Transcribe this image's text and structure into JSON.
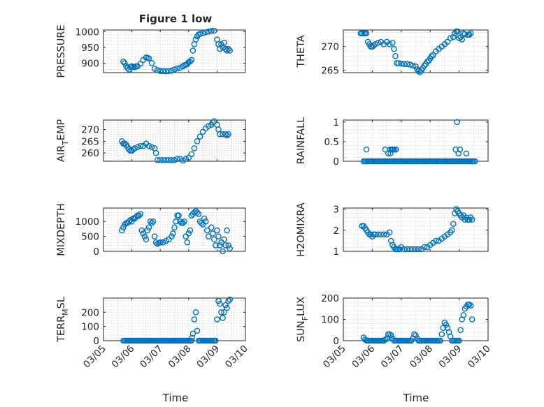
{
  "figure_title": "Figure 1 low",
  "xlabel": "Time",
  "colors": {
    "marker": "#0072bd",
    "axis": "#262626",
    "grid": "#cfcfcf"
  },
  "chart_data": [
    {
      "name": "PRESSURE",
      "type": "scatter",
      "ylabel_main": "PRESSURE",
      "ylabel_sub": "",
      "ylabel_tail": "",
      "xlim": [
        5,
        10
      ],
      "ylim": [
        870,
        1005
      ],
      "yticks": [
        900,
        950,
        1000
      ],
      "x": [
        5.7,
        5.75,
        5.8,
        5.85,
        5.9,
        5.95,
        6.0,
        6.05,
        6.1,
        6.15,
        6.2,
        6.3,
        6.4,
        6.5,
        6.55,
        6.6,
        6.7,
        6.8,
        6.9,
        7.0,
        7.1,
        7.2,
        7.3,
        7.4,
        7.5,
        7.6,
        7.7,
        7.8,
        7.85,
        7.9,
        7.95,
        8.0,
        8.05,
        8.1,
        8.15,
        8.2,
        8.25,
        8.3,
        8.35,
        8.4,
        8.5,
        8.6,
        8.7,
        8.8,
        8.9,
        9.0,
        9.05,
        9.1,
        9.15,
        9.2,
        9.25,
        9.3,
        9.35,
        9.4,
        9.45
      ],
      "y": [
        905,
        900,
        890,
        885,
        880,
        888,
        890,
        888,
        887,
        890,
        890,
        898,
        910,
        918,
        917,
        915,
        900,
        882,
        878,
        875,
        875,
        874,
        875,
        876,
        880,
        883,
        885,
        890,
        893,
        895,
        897,
        903,
        905,
        910,
        940,
        960,
        975,
        985,
        990,
        993,
        995,
        998,
        1000,
        1002,
        1003,
        975,
        960,
        945,
        960,
        950,
        965,
        945,
        940,
        945,
        940
      ]
    },
    {
      "name": "THETA",
      "type": "scatter",
      "ylabel_main": "THETA",
      "ylabel_sub": "",
      "ylabel_tail": "",
      "xlim": [
        5,
        10
      ],
      "ylim": [
        264.5,
        273.5
      ],
      "yticks": [
        265,
        270
      ],
      "x": [
        5.6,
        5.65,
        5.7,
        5.75,
        5.8,
        5.85,
        5.9,
        5.95,
        6.0,
        6.05,
        6.1,
        6.2,
        6.3,
        6.4,
        6.5,
        6.6,
        6.7,
        6.75,
        6.8,
        6.85,
        6.9,
        7.0,
        7.1,
        7.2,
        7.3,
        7.4,
        7.5,
        7.55,
        7.6,
        7.65,
        7.7,
        7.75,
        7.8,
        7.85,
        7.9,
        7.95,
        8.0,
        8.05,
        8.1,
        8.2,
        8.3,
        8.4,
        8.5,
        8.6,
        8.7,
        8.8,
        8.85,
        8.9,
        8.95,
        9.0,
        9.05,
        9.1,
        9.15,
        9.2,
        9.3,
        9.35,
        9.4
      ],
      "y": [
        272.8,
        272.8,
        272.8,
        272.8,
        272.8,
        271,
        270.5,
        270,
        270,
        270.2,
        270.5,
        270.8,
        271,
        270.5,
        271,
        270.5,
        270.8,
        269.5,
        268,
        266.5,
        266.5,
        266.4,
        266.3,
        266.3,
        266.2,
        266,
        265.8,
        265.2,
        264.8,
        264.6,
        265,
        265.5,
        266,
        266.3,
        266.8,
        267,
        267.5,
        268,
        268.2,
        269,
        269.5,
        270,
        270.5,
        271,
        271.8,
        272,
        272.8,
        273.2,
        273.2,
        271.8,
        272,
        271.5,
        272.8,
        272.6,
        272.5,
        272.5,
        272.8
      ]
    },
    {
      "name": "AIR_TEMP",
      "type": "scatter",
      "ylabel_main": "AIR",
      "ylabel_sub": "T",
      "ylabel_tail": "EMP",
      "xlim": [
        5,
        10
      ],
      "ylim": [
        256.5,
        274
      ],
      "yticks": [
        260,
        265,
        270
      ],
      "x": [
        5.65,
        5.7,
        5.75,
        5.8,
        5.85,
        5.9,
        5.95,
        6.0,
        6.05,
        6.1,
        6.2,
        6.3,
        6.4,
        6.5,
        6.6,
        6.7,
        6.8,
        6.85,
        6.9,
        7.0,
        7.1,
        7.2,
        7.3,
        7.4,
        7.5,
        7.6,
        7.7,
        7.8,
        7.9,
        8.0,
        8.1,
        8.2,
        8.3,
        8.4,
        8.5,
        8.6,
        8.7,
        8.8,
        8.85,
        8.9,
        9.0,
        9.05,
        9.1,
        9.2,
        9.3,
        9.35,
        9.4
      ],
      "y": [
        265,
        264,
        264,
        263.5,
        262.5,
        261.5,
        261,
        261,
        261.5,
        262,
        262.5,
        263,
        263,
        264,
        263,
        262.5,
        262,
        260,
        257,
        257,
        257,
        257,
        257,
        257,
        257,
        257.5,
        257.5,
        256.8,
        257.5,
        258,
        259.5,
        262,
        265,
        267,
        269,
        270.5,
        271.5,
        272,
        273,
        273.5,
        272,
        270,
        268,
        268,
        268,
        267.5,
        268
      ]
    },
    {
      "name": "RAINFALL",
      "type": "scatter",
      "ylabel_main": "RAINFALL",
      "ylabel_sub": "",
      "ylabel_tail": "",
      "xlim": [
        5,
        10
      ],
      "ylim": [
        0,
        1.05
      ],
      "yticks": [
        0,
        0.5,
        1
      ],
      "x": [
        5.7,
        5.75,
        5.8,
        5.85,
        5.9,
        5.95,
        6.0,
        6.05,
        6.1,
        6.15,
        6.2,
        6.25,
        6.3,
        6.35,
        6.4,
        6.45,
        6.5,
        6.55,
        6.6,
        6.65,
        6.7,
        6.75,
        6.8,
        6.85,
        6.9,
        6.95,
        7.0,
        7.05,
        7.1,
        7.15,
        7.2,
        7.25,
        7.3,
        7.35,
        7.4,
        7.45,
        7.5,
        7.55,
        7.6,
        7.65,
        7.7,
        7.75,
        7.8,
        7.85,
        7.9,
        7.95,
        8.0,
        8.05,
        8.1,
        8.15,
        8.2,
        8.25,
        8.3,
        8.35,
        8.4,
        8.45,
        8.5,
        8.55,
        8.6,
        8.65,
        8.7,
        8.75,
        8.8,
        8.85,
        8.9,
        8.95,
        9.0,
        9.05,
        9.1,
        9.15,
        9.2,
        9.25,
        9.3,
        9.35,
        9.4,
        9.45,
        9.5,
        9.55,
        5.8,
        6.45,
        6.55,
        6.62,
        6.67,
        6.72,
        6.77,
        6.63,
        6.7,
        6.82,
        8.88,
        8.93,
        8.98,
        9.03,
        9.25
      ],
      "y": [
        0,
        0,
        0,
        0,
        0,
        0,
        0,
        0,
        0,
        0,
        0,
        0,
        0,
        0,
        0,
        0,
        0,
        0,
        0,
        0,
        0,
        0,
        0,
        0,
        0,
        0,
        0,
        0,
        0,
        0,
        0,
        0,
        0,
        0,
        0,
        0,
        0,
        0,
        0,
        0,
        0,
        0,
        0,
        0,
        0,
        0,
        0,
        0,
        0,
        0,
        0,
        0,
        0,
        0,
        0,
        0,
        0,
        0,
        0,
        0,
        0,
        0,
        0,
        0,
        0,
        0,
        0,
        0,
        0,
        0,
        0,
        0,
        0,
        0,
        0,
        0,
        0,
        0,
        0.3,
        0.3,
        0.2,
        0.3,
        0.3,
        0.3,
        0.3,
        0.2,
        0.3,
        0.3,
        0.3,
        1.0,
        0.2,
        0.3,
        0.2
      ]
    },
    {
      "name": "MIXDEPTH",
      "type": "scatter",
      "ylabel_main": "MIXDEPTH",
      "ylabel_sub": "",
      "ylabel_tail": "",
      "xlim": [
        5,
        10
      ],
      "ylim": [
        0,
        1450
      ],
      "yticks": [
        0,
        500,
        1000
      ],
      "x": [
        5.65,
        5.7,
        5.75,
        5.8,
        5.85,
        5.9,
        5.95,
        6.0,
        6.05,
        6.1,
        6.15,
        6.2,
        6.25,
        6.3,
        6.35,
        6.4,
        6.45,
        6.5,
        6.55,
        6.6,
        6.65,
        6.7,
        6.75,
        6.8,
        6.85,
        6.9,
        6.95,
        7.0,
        7.1,
        7.2,
        7.3,
        7.4,
        7.45,
        7.5,
        7.55,
        7.6,
        7.65,
        7.7,
        7.75,
        7.8,
        7.85,
        7.9,
        7.95,
        8.0,
        8.05,
        8.1,
        8.15,
        8.2,
        8.25,
        8.3,
        8.35,
        8.4,
        8.45,
        8.5,
        8.55,
        8.6,
        8.65,
        8.7,
        8.8,
        8.85,
        8.9,
        8.95,
        9.0,
        9.05,
        9.1,
        9.15,
        9.2,
        9.25,
        9.3,
        9.35,
        9.4,
        9.45
      ],
      "y": [
        700,
        800,
        900,
        950,
        950,
        1000,
        1050,
        1000,
        1100,
        1100,
        1150,
        1200,
        1200,
        1250,
        700,
        600,
        500,
        400,
        700,
        800,
        1000,
        950,
        1000,
        500,
        300,
        250,
        280,
        300,
        300,
        350,
        400,
        500,
        600,
        800,
        1000,
        1200,
        1200,
        1000,
        950,
        950,
        1000,
        500,
        300,
        600,
        700,
        1200,
        1250,
        1300,
        1350,
        1300,
        1250,
        1000,
        950,
        900,
        1100,
        1000,
        700,
        500,
        800,
        600,
        400,
        200,
        700,
        500,
        200,
        300,
        0,
        400,
        200,
        700,
        200,
        100
      ]
    },
    {
      "name": "H2OMIXRA",
      "type": "scatter",
      "ylabel_main": "H2OMIXRA",
      "ylabel_sub": "",
      "ylabel_tail": "",
      "xlim": [
        5,
        10
      ],
      "ylim": [
        1,
        3.05
      ],
      "yticks": [
        1,
        2,
        3
      ],
      "x": [
        5.65,
        5.7,
        5.75,
        5.8,
        5.85,
        5.9,
        5.95,
        6.0,
        6.05,
        6.1,
        6.2,
        6.3,
        6.4,
        6.5,
        6.6,
        6.65,
        6.7,
        6.75,
        6.8,
        6.85,
        6.9,
        6.95,
        7.0,
        7.1,
        7.2,
        7.3,
        7.4,
        7.5,
        7.6,
        7.7,
        7.8,
        7.9,
        8.0,
        8.1,
        8.2,
        8.3,
        8.4,
        8.5,
        8.6,
        8.7,
        8.75,
        8.8,
        8.85,
        8.9,
        8.95,
        9.0,
        9.05,
        9.1,
        9.15,
        9.2,
        9.25,
        9.3,
        9.35,
        9.4,
        9.45
      ],
      "y": [
        2.2,
        2.2,
        2.1,
        2,
        1.9,
        1.8,
        1.8,
        1.7,
        1.8,
        1.8,
        1.8,
        1.8,
        1.8,
        1.8,
        1.9,
        1.5,
        1.3,
        1.2,
        1.1,
        1.1,
        1.1,
        1.1,
        1.2,
        1.1,
        1.1,
        1.1,
        1.1,
        1.1,
        1.1,
        1.1,
        1.2,
        1.2,
        1.3,
        1.4,
        1.5,
        1.5,
        1.6,
        1.7,
        1.8,
        1.9,
        2,
        2.3,
        2.8,
        3,
        2.9,
        2.8,
        2.7,
        2.6,
        2.7,
        2.5,
        2.6,
        2.5,
        2.5,
        2.6,
        2.5
      ]
    },
    {
      "name": "TERR_MSL",
      "type": "scatter",
      "ylabel_main": "TERR",
      "ylabel_sub": "M",
      "ylabel_tail": "SL",
      "xlim": [
        5,
        10
      ],
      "ylim": [
        0,
        300
      ],
      "yticks": [
        0,
        100,
        200
      ],
      "x": [
        5.7,
        5.75,
        5.8,
        5.85,
        5.9,
        5.95,
        6.0,
        6.05,
        6.1,
        6.15,
        6.2,
        6.25,
        6.3,
        6.35,
        6.4,
        6.45,
        6.5,
        6.55,
        6.6,
        6.65,
        6.7,
        6.75,
        6.8,
        6.85,
        6.9,
        6.95,
        7.0,
        7.05,
        7.1,
        7.15,
        7.2,
        7.25,
        7.3,
        7.35,
        7.4,
        7.45,
        7.5,
        7.55,
        7.6,
        7.65,
        7.7,
        7.75,
        7.8,
        7.85,
        7.9,
        7.95,
        8.0,
        8.05,
        8.1,
        8.12,
        8.15,
        8.2,
        8.25,
        8.3,
        8.35,
        8.4,
        8.45,
        8.5,
        8.55,
        8.6,
        8.65,
        8.7,
        8.75,
        8.8,
        8.85,
        8.9,
        8.95,
        9.0,
        9.05,
        9.1,
        9.15,
        9.2,
        9.25,
        9.3,
        9.35,
        9.4,
        9.45
      ],
      "y": [
        0,
        0,
        0,
        0,
        0,
        0,
        0,
        0,
        0,
        0,
        0,
        0,
        0,
        0,
        0,
        0,
        0,
        0,
        0,
        0,
        0,
        0,
        0,
        0,
        0,
        0,
        0,
        0,
        0,
        0,
        0,
        0,
        0,
        0,
        0,
        0,
        0,
        0,
        0,
        0,
        0,
        0,
        0,
        0,
        0,
        0,
        0,
        0,
        0,
        20,
        50,
        150,
        200,
        70,
        0,
        0,
        0,
        0,
        0,
        0,
        0,
        0,
        0,
        0,
        0,
        0,
        0,
        150,
        280,
        260,
        200,
        160,
        200,
        250,
        230,
        280,
        290
      ]
    },
    {
      "name": "SUN_FLUX",
      "type": "scatter",
      "ylabel_main": "SUN",
      "ylabel_sub": "F",
      "ylabel_tail": "LUX",
      "xlim": [
        5,
        10
      ],
      "ylim": [
        0,
        200
      ],
      "yticks": [
        0,
        100,
        200
      ],
      "x": [
        5.7,
        5.75,
        5.8,
        5.85,
        5.9,
        5.95,
        6.0,
        6.05,
        6.1,
        6.15,
        6.2,
        6.25,
        6.3,
        6.35,
        6.4,
        6.45,
        6.5,
        6.55,
        6.6,
        6.65,
        6.7,
        6.75,
        6.8,
        6.85,
        6.9,
        6.95,
        7.0,
        7.05,
        7.1,
        7.15,
        7.2,
        7.25,
        7.3,
        7.35,
        7.4,
        7.45,
        7.5,
        7.55,
        7.6,
        7.65,
        7.7,
        7.75,
        7.8,
        7.85,
        7.9,
        7.95,
        8.0,
        8.05,
        8.1,
        8.15,
        8.2,
        8.25,
        8.3,
        8.35,
        8.4,
        8.45,
        8.5,
        8.55,
        8.6,
        8.65,
        8.7,
        8.75,
        8.8,
        8.85,
        8.9,
        8.95,
        9.0,
        9.05,
        9.1,
        9.15,
        9.2,
        9.25,
        9.3,
        9.35,
        9.4,
        9.45
      ],
      "y": [
        15,
        5,
        0,
        0,
        0,
        0,
        0,
        0,
        0,
        0,
        0,
        0,
        0,
        0,
        0,
        5,
        10,
        30,
        30,
        25,
        10,
        0,
        0,
        0,
        0,
        0,
        0,
        0,
        0,
        0,
        0,
        0,
        0,
        0,
        10,
        30,
        25,
        10,
        0,
        0,
        0,
        0,
        0,
        0,
        0,
        0,
        0,
        0,
        0,
        0,
        0,
        0,
        0,
        0,
        30,
        60,
        85,
        75,
        60,
        40,
        20,
        0,
        0,
        0,
        0,
        0,
        0,
        50,
        100,
        120,
        150,
        160,
        170,
        170,
        165,
        100
      ]
    }
  ],
  "xticks": {
    "values": [
      5,
      6,
      7,
      8,
      9,
      10
    ],
    "labels": [
      "03/05",
      "03/06",
      "03/07",
      "03/08",
      "03/09",
      "03/10"
    ]
  }
}
